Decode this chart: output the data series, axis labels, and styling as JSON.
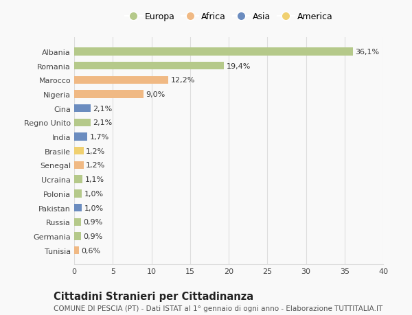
{
  "categories": [
    "Albania",
    "Romania",
    "Marocco",
    "Nigeria",
    "Cina",
    "Regno Unito",
    "India",
    "Brasile",
    "Senegal",
    "Ucraina",
    "Polonia",
    "Pakistan",
    "Russia",
    "Germania",
    "Tunisia"
  ],
  "values": [
    36.1,
    19.4,
    12.2,
    9.0,
    2.1,
    2.1,
    1.7,
    1.2,
    1.2,
    1.1,
    1.0,
    1.0,
    0.9,
    0.9,
    0.6
  ],
  "labels": [
    "36,1%",
    "19,4%",
    "12,2%",
    "9,0%",
    "2,1%",
    "2,1%",
    "1,7%",
    "1,2%",
    "1,2%",
    "1,1%",
    "1,0%",
    "1,0%",
    "0,9%",
    "0,9%",
    "0,6%"
  ],
  "colors": [
    "#b5c98a",
    "#b5c98a",
    "#f0b984",
    "#f0b984",
    "#6b8cbf",
    "#b5c98a",
    "#6b8cbf",
    "#f0d070",
    "#f0b984",
    "#b5c98a",
    "#b5c98a",
    "#6b8cbf",
    "#b5c98a",
    "#b5c98a",
    "#f0b984"
  ],
  "legend_labels": [
    "Europa",
    "Africa",
    "Asia",
    "America"
  ],
  "legend_colors": [
    "#b5c98a",
    "#f0b984",
    "#6b8cbf",
    "#f0d070"
  ],
  "title": "Cittadini Stranieri per Cittadinanza",
  "subtitle": "COMUNE DI PESCIA (PT) - Dati ISTAT al 1° gennaio di ogni anno - Elaborazione TUTTITALIA.IT",
  "xlim": [
    0,
    40
  ],
  "xticks": [
    0,
    5,
    10,
    15,
    20,
    25,
    30,
    35,
    40
  ],
  "bg_color": "#f9f9f9",
  "grid_color": "#dddddd",
  "bar_height": 0.55,
  "label_fontsize": 8.0,
  "title_fontsize": 10.5,
  "subtitle_fontsize": 7.5,
  "tick_fontsize": 8.0
}
